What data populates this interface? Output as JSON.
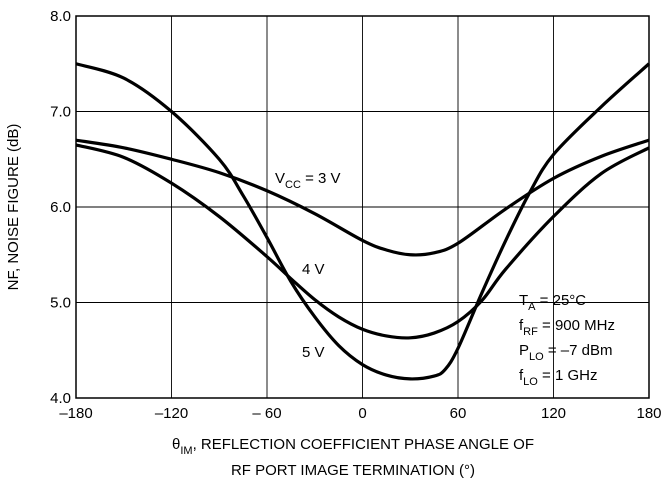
{
  "chart_data": {
    "type": "line",
    "title": "",
    "xlabel_line1": "θ",
    "xlabel_line1_sub": "IM",
    "xlabel_line1_rest": ", REFLECTION COEFFICIENT PHASE ANGLE OF",
    "xlabel_line2": "RF PORT IMAGE TERMINATION (°)",
    "ylabel": "NF, NOISE FIGURE (dB)",
    "xlim": [
      -180,
      180
    ],
    "ylim": [
      4.0,
      8.0
    ],
    "x_ticks": [
      -180,
      -120,
      -60,
      0,
      60,
      120,
      180
    ],
    "x_tick_labels": [
      "–180",
      "–120",
      "– 60",
      "0",
      "60",
      "120",
      "180"
    ],
    "y_ticks": [
      4.0,
      5.0,
      6.0,
      7.0,
      8.0
    ],
    "y_tick_labels": [
      "4.0",
      "5.0",
      "6.0",
      "7.0",
      "8.0"
    ],
    "grid": true,
    "series": [
      {
        "name": "VCC = 3 V",
        "label_main": "V",
        "label_sub": "CC",
        "label_rest": " = 3 V",
        "x": [
          -180,
          -150,
          -120,
          -90,
          -60,
          -30,
          0,
          15,
          30,
          45,
          60,
          90,
          120,
          150,
          180
        ],
        "y": [
          6.7,
          6.62,
          6.5,
          6.36,
          6.17,
          5.93,
          5.65,
          5.55,
          5.5,
          5.52,
          5.62,
          5.98,
          6.3,
          6.53,
          6.7
        ]
      },
      {
        "name": "4 V",
        "label_main": "4 V",
        "x": [
          -180,
          -150,
          -120,
          -90,
          -60,
          -45,
          -30,
          -15,
          0,
          15,
          30,
          45,
          60,
          75,
          90,
          120,
          150,
          180
        ],
        "y": [
          6.65,
          6.52,
          6.25,
          5.9,
          5.48,
          5.25,
          5.03,
          4.85,
          4.72,
          4.65,
          4.63,
          4.68,
          4.8,
          5.02,
          5.35,
          5.9,
          6.35,
          6.62
        ]
      },
      {
        "name": "5 V",
        "label_main": "5 V",
        "x": [
          -180,
          -150,
          -120,
          -90,
          -75,
          -60,
          -45,
          -30,
          -15,
          0,
          15,
          30,
          45,
          52,
          60,
          75,
          90,
          105,
          120,
          150,
          180
        ],
        "y": [
          7.5,
          7.35,
          7.0,
          6.5,
          6.12,
          5.68,
          5.22,
          4.85,
          4.55,
          4.35,
          4.24,
          4.2,
          4.23,
          4.3,
          4.52,
          5.1,
          5.65,
          6.15,
          6.55,
          7.05,
          7.5
        ]
      }
    ],
    "conditions": [
      {
        "main": "T",
        "sub": "A",
        "rest": " = 25°C"
      },
      {
        "main": "f",
        "sub": "RF",
        "rest": " = 900 MHz"
      },
      {
        "main": "P",
        "sub": "LO",
        "rest": " = –7 dBm"
      },
      {
        "main": "f",
        "sub": "LO",
        "rest": " = 1 GHz"
      }
    ]
  }
}
